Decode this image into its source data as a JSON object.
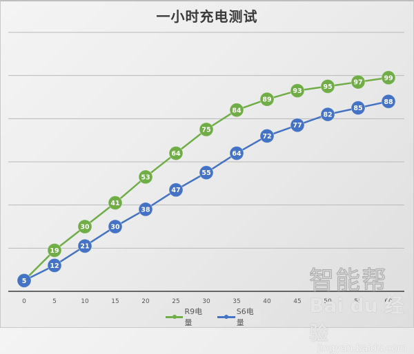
{
  "chart_data": {
    "type": "line",
    "title": "一小时充电测试",
    "xlabel": "",
    "ylabel": "",
    "x": [
      0,
      5,
      10,
      15,
      20,
      25,
      30,
      35,
      40,
      45,
      50,
      55,
      60
    ],
    "series": [
      {
        "name": "R9电量",
        "color": "#70ad47",
        "values": [
          5,
          19,
          30,
          41,
          53,
          64,
          75,
          84,
          89,
          93,
          95,
          97,
          99
        ]
      },
      {
        "name": "S6电量",
        "color": "#4472c4",
        "values": [
          5,
          12,
          21,
          30,
          38,
          47,
          55,
          64,
          72,
          77,
          82,
          85,
          88
        ]
      }
    ],
    "ylim": [
      0,
      120
    ],
    "y_gridlines": [
      20,
      40,
      60,
      80,
      100,
      120
    ],
    "grid": true,
    "y_axis_labels_visible": false,
    "data_labels": true,
    "legend_position": "bottom"
  },
  "legend": {
    "items": [
      {
        "label": "R9电量",
        "color": "#70ad47"
      },
      {
        "label": "S6电量",
        "color": "#4472c4"
      }
    ]
  },
  "watermark": {
    "line1": "智能帮",
    "line2": "Bai du 经验",
    "line3": "jingyan.baidu.com"
  }
}
